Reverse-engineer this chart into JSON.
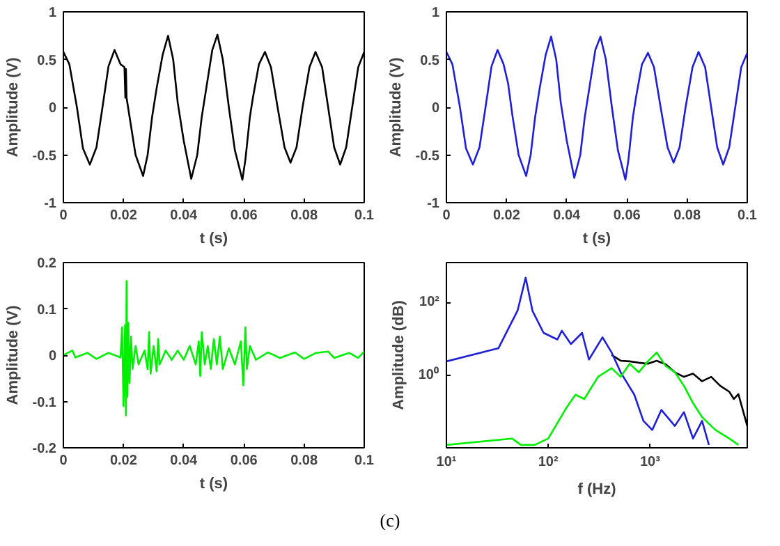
{
  "chart_data": [
    {
      "type": "line",
      "xlabel": "t (s)",
      "ylabel": "Amplitude (V)",
      "xlim": [
        0,
        0.1
      ],
      "ylim": [
        -1,
        1
      ],
      "xticks": [
        0,
        0.02,
        0.04,
        0.06,
        0.08,
        0.1
      ],
      "yticks": [
        -1,
        -0.5,
        0,
        0.5,
        1
      ],
      "grid": false,
      "series": [
        {
          "color": "#000000",
          "x": [
            0,
            0.002,
            0.0045,
            0.0065,
            0.0088,
            0.011,
            0.013,
            0.015,
            0.017,
            0.019,
            0.0203,
            0.0206,
            0.0208,
            0.021,
            0.022,
            0.024,
            0.0265,
            0.028,
            0.0295,
            0.031,
            0.033,
            0.0348,
            0.0365,
            0.038,
            0.04,
            0.0425,
            0.0445,
            0.046,
            0.048,
            0.0495,
            0.0512,
            0.053,
            0.055,
            0.057,
            0.0595,
            0.0605,
            0.062,
            0.063,
            0.065,
            0.067,
            0.069,
            0.0712,
            0.0735,
            0.0755,
            0.0775,
            0.0795,
            0.0818,
            0.0838,
            0.086,
            0.088,
            0.09,
            0.092,
            0.094,
            0.096,
            0.098,
            0.1
          ],
          "values": [
            0.58,
            0.45,
            0,
            -0.43,
            -0.6,
            -0.42,
            0,
            0.43,
            0.6,
            0.45,
            0.42,
            0.1,
            0.4,
            0.1,
            -0.1,
            -0.5,
            -0.72,
            -0.5,
            -0.1,
            0.2,
            0.55,
            0.75,
            0.5,
            0.05,
            -0.35,
            -0.75,
            -0.5,
            -0.1,
            0.3,
            0.6,
            0.76,
            0.5,
            0,
            -0.45,
            -0.76,
            -0.55,
            -0.1,
            0.1,
            0.45,
            0.58,
            0.42,
            0,
            -0.42,
            -0.58,
            -0.42,
            0,
            0.42,
            0.58,
            0.42,
            0,
            -0.42,
            -0.6,
            -0.42,
            0,
            0.42,
            0.58
          ]
        }
      ]
    },
    {
      "type": "line",
      "xlabel": "t (s)",
      "ylabel": "Amplitude (V)",
      "xlim": [
        0,
        0.1
      ],
      "ylim": [
        -1,
        1
      ],
      "xticks": [
        0,
        0.02,
        0.04,
        0.06,
        0.08,
        0.1
      ],
      "yticks": [
        -1,
        -0.5,
        0,
        0.5,
        1
      ],
      "grid": false,
      "series": [
        {
          "color": "#1f1fd6",
          "x": [
            0,
            0.002,
            0.0045,
            0.0065,
            0.0088,
            0.011,
            0.013,
            0.015,
            0.017,
            0.019,
            0.0205,
            0.022,
            0.024,
            0.0265,
            0.028,
            0.0295,
            0.031,
            0.033,
            0.0348,
            0.0365,
            0.038,
            0.04,
            0.0425,
            0.0445,
            0.046,
            0.048,
            0.0495,
            0.0512,
            0.053,
            0.055,
            0.057,
            0.0595,
            0.0605,
            0.062,
            0.063,
            0.065,
            0.067,
            0.069,
            0.0712,
            0.0735,
            0.0755,
            0.0775,
            0.0795,
            0.0818,
            0.0838,
            0.086,
            0.088,
            0.09,
            0.092,
            0.094,
            0.096,
            0.098,
            0.1
          ],
          "values": [
            0.58,
            0.45,
            0,
            -0.43,
            -0.6,
            -0.42,
            0,
            0.43,
            0.6,
            0.45,
            0.25,
            -0.1,
            -0.5,
            -0.72,
            -0.5,
            -0.1,
            0.2,
            0.55,
            0.74,
            0.5,
            0.05,
            -0.35,
            -0.74,
            -0.5,
            -0.1,
            0.3,
            0.6,
            0.74,
            0.5,
            0,
            -0.45,
            -0.76,
            -0.55,
            -0.1,
            0.1,
            0.45,
            0.57,
            0.42,
            0,
            -0.42,
            -0.58,
            -0.42,
            0,
            0.42,
            0.58,
            0.42,
            0,
            -0.42,
            -0.6,
            -0.42,
            0,
            0.42,
            0.57
          ]
        }
      ]
    },
    {
      "type": "line",
      "xlabel": "t (s)",
      "ylabel": "Amplitude (V)",
      "xlim": [
        0,
        0.1
      ],
      "ylim": [
        -0.2,
        0.2
      ],
      "xticks": [
        0,
        0.02,
        0.04,
        0.06,
        0.08,
        0.1
      ],
      "yticks": [
        -0.2,
        -0.1,
        0,
        0.1,
        0.2
      ],
      "grid": false,
      "series": [
        {
          "color": "#00ee00",
          "x": [
            0,
            0.003,
            0.004,
            0.008,
            0.011,
            0.015,
            0.019,
            0.0195,
            0.02,
            0.0205,
            0.0208,
            0.021,
            0.0213,
            0.0216,
            0.022,
            0.0225,
            0.023,
            0.024,
            0.025,
            0.027,
            0.028,
            0.0285,
            0.029,
            0.03,
            0.031,
            0.0315,
            0.032,
            0.034,
            0.036,
            0.038,
            0.04,
            0.042,
            0.044,
            0.045,
            0.0455,
            0.046,
            0.047,
            0.048,
            0.049,
            0.05,
            0.051,
            0.052,
            0.053,
            0.055,
            0.057,
            0.059,
            0.0598,
            0.0605,
            0.061,
            0.062,
            0.064,
            0.068,
            0.072,
            0.077,
            0.08,
            0.084,
            0.088,
            0.09,
            0.095,
            0.098,
            0.1
          ],
          "values": [
            0,
            0.01,
            -0.005,
            0.005,
            -0.008,
            0.005,
            -0.005,
            0.06,
            -0.11,
            0.065,
            -0.13,
            0.16,
            -0.09,
            0.07,
            -0.06,
            0.04,
            -0.03,
            0.02,
            -0.02,
            0.01,
            -0.03,
            0.05,
            -0.04,
            0.02,
            -0.035,
            0.035,
            -0.02,
            0.01,
            -0.01,
            0.01,
            -0.01,
            0.02,
            -0.02,
            0.03,
            -0.045,
            0.05,
            -0.02,
            0.02,
            -0.03,
            0.035,
            -0.02,
            0.04,
            -0.03,
            0.015,
            -0.02,
            0.03,
            -0.065,
            0.06,
            -0.03,
            0.02,
            -0.01,
            0.006,
            -0.006,
            0.006,
            -0.008,
            0.005,
            0.008,
            -0.006,
            0.005,
            -0.006,
            0.008
          ]
        }
      ]
    },
    {
      "type": "line",
      "xlabel": "f (Hz)",
      "ylabel": "Amplitude (dB)",
      "log": "xy",
      "xlim": [
        10,
        9000
      ],
      "ylim": [
        0.01,
        1260
      ],
      "xticks": [
        {
          "value": 10,
          "label": "10¹"
        },
        {
          "value": 100,
          "label": "10²"
        },
        {
          "value": 1000,
          "label": "10³"
        }
      ],
      "yticks": [
        {
          "value": 1,
          "label": "10⁰"
        },
        {
          "value": 100,
          "label": "10²"
        }
      ],
      "grid": false,
      "annotations": [
        "(c)"
      ],
      "series": [
        {
          "color": "#000000",
          "x": [
            419,
            514,
            631,
            774,
            950,
            1160,
            1420,
            1750,
            2150,
            2640,
            3240,
            3980,
            4870,
            5990,
            6650,
            7360,
            9000
          ],
          "values": [
            3.6,
            2.5,
            2.4,
            2.2,
            2.06,
            2.5,
            2.0,
            1.2,
            0.9,
            1.1,
            0.68,
            0.9,
            0.51,
            0.35,
            0.22,
            0.3,
            0.04
          ]
        },
        {
          "color": "#1f1fd6",
          "x": [
            10,
            32.4,
            50,
            60,
            70,
            90,
            123,
            136,
            167,
            215,
            251,
            341,
            419,
            514,
            700,
            860,
            1050,
            1290,
            1750,
            2150,
            2640,
            3240,
            3780
          ],
          "values": [
            2.4,
            5.5,
            60,
            480,
            59,
            14.6,
            9.6,
            16.7,
            7.2,
            14.6,
            2.7,
            11,
            4.2,
            1.2,
            0.29,
            0.055,
            0.031,
            0.11,
            0.04,
            0.096,
            0.018,
            0.055,
            0.012
          ]
        },
        {
          "color": "#00ee00",
          "x": [
            10,
            44,
            54,
            73.6,
            100,
            151,
            185,
            226,
            308,
            419,
            514,
            631,
            774,
            950,
            1160,
            1420,
            1750,
            2150,
            2640,
            3240,
            4380,
            5990,
            7360
          ],
          "values": [
            0.012,
            0.018,
            0.012,
            0.012,
            0.018,
            0.127,
            0.29,
            0.22,
            0.9,
            1.56,
            0.9,
            2.06,
            1.2,
            2.4,
            4.2,
            1.8,
            1.2,
            0.51,
            0.17,
            0.07,
            0.031,
            0.018,
            0.012
          ]
        }
      ]
    }
  ]
}
